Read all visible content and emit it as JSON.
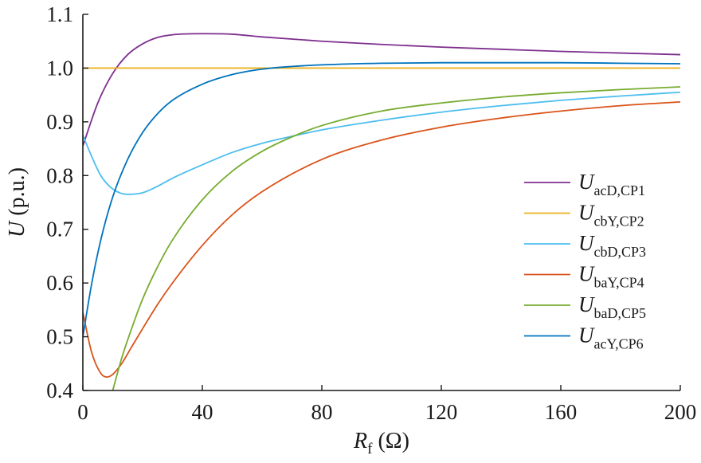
{
  "chart_data": {
    "type": "line",
    "title": "",
    "xlabel": {
      "main": "R",
      "sub": "f",
      "unit": " (Ω)"
    },
    "ylabel": {
      "main": "U",
      "unit": " (p.u.)"
    },
    "xlim": [
      0,
      200
    ],
    "ylim": [
      0.4,
      1.1
    ],
    "xticks": [
      0,
      40,
      80,
      120,
      160,
      200
    ],
    "yticks": [
      0.4,
      0.5,
      0.6,
      0.7,
      0.8,
      0.9,
      1.0,
      1.1
    ],
    "ytick_labels": [
      "0.4",
      "0.5",
      "0.6",
      "0.7",
      "0.8",
      "0.9",
      "1.0",
      "1.1"
    ],
    "xtick_labels": [
      "0",
      "40",
      "80",
      "120",
      "160",
      "200"
    ],
    "grid": false,
    "legend_position": "center-right",
    "series": [
      {
        "name": "U",
        "sub": "acD,CP1",
        "color": "#7e2f8e",
        "x": [
          0,
          5,
          10,
          15,
          20,
          25,
          30,
          40,
          50,
          60,
          80,
          100,
          120,
          140,
          160,
          180,
          200
        ],
        "y": [
          0.855,
          0.935,
          0.99,
          1.025,
          1.045,
          1.057,
          1.062,
          1.064,
          1.063,
          1.058,
          1.05,
          1.044,
          1.039,
          1.035,
          1.031,
          1.028,
          1.025
        ]
      },
      {
        "name": "U",
        "sub": "cbY,CP2",
        "color": "#edb120",
        "x": [
          0,
          50,
          100,
          150,
          200
        ],
        "y": [
          1.0,
          1.0,
          1.0,
          1.0,
          1.0
        ]
      },
      {
        "name": "U",
        "sub": "cbD,CP3",
        "color": "#4dbeee",
        "x": [
          0,
          3,
          6,
          10,
          15,
          20,
          25,
          30,
          40,
          50,
          60,
          70,
          80,
          100,
          120,
          140,
          160,
          180,
          200
        ],
        "y": [
          0.875,
          0.835,
          0.8,
          0.775,
          0.765,
          0.768,
          0.78,
          0.795,
          0.82,
          0.843,
          0.86,
          0.873,
          0.885,
          0.903,
          0.918,
          0.93,
          0.94,
          0.948,
          0.955
        ]
      },
      {
        "name": "U",
        "sub": "baY,CP4",
        "color": "#d95319",
        "x": [
          0,
          3,
          6,
          8,
          10,
          13,
          16,
          20,
          25,
          30,
          40,
          50,
          60,
          80,
          100,
          120,
          140,
          160,
          180,
          200
        ],
        "y": [
          0.545,
          0.47,
          0.432,
          0.425,
          0.43,
          0.45,
          0.478,
          0.515,
          0.56,
          0.6,
          0.67,
          0.727,
          0.77,
          0.83,
          0.866,
          0.89,
          0.907,
          0.92,
          0.93,
          0.937
        ]
      },
      {
        "name": "U",
        "sub": "baD,CP5",
        "color": "#77ac30",
        "x": [
          10,
          13,
          16,
          20,
          25,
          30,
          40,
          50,
          60,
          70,
          80,
          100,
          120,
          140,
          160,
          180,
          200
        ],
        "y": [
          0.4,
          0.46,
          0.51,
          0.57,
          0.63,
          0.68,
          0.755,
          0.808,
          0.845,
          0.872,
          0.893,
          0.92,
          0.935,
          0.946,
          0.954,
          0.96,
          0.965
        ]
      },
      {
        "name": "U",
        "sub": "acY,CP6",
        "color": "#0072bd",
        "x": [
          0,
          3,
          6,
          10,
          15,
          20,
          25,
          30,
          40,
          50,
          60,
          70,
          80,
          100,
          120,
          140,
          160,
          180,
          200
        ],
        "y": [
          0.5,
          0.6,
          0.68,
          0.76,
          0.83,
          0.88,
          0.915,
          0.94,
          0.97,
          0.988,
          0.998,
          1.003,
          1.006,
          1.009,
          1.01,
          1.01,
          1.01,
          1.009,
          1.008
        ]
      }
    ]
  }
}
